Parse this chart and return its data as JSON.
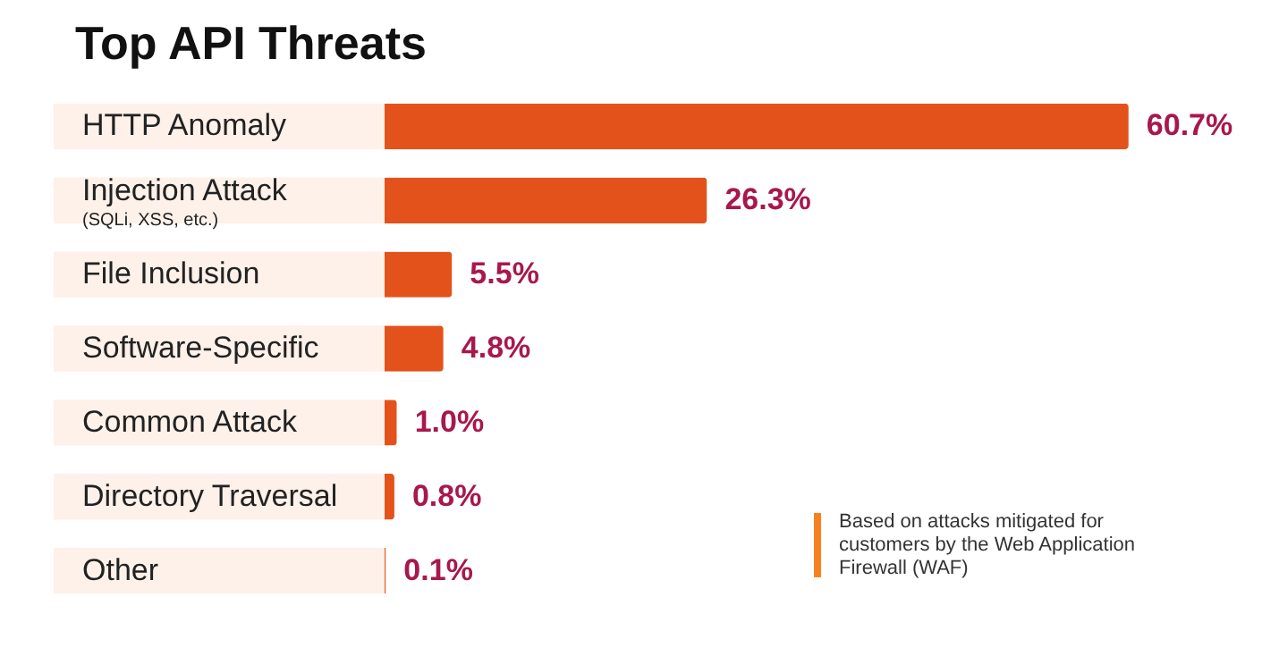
{
  "chart_data": {
    "type": "bar",
    "orientation": "horizontal",
    "title": "Top API Threats",
    "categories": [
      "HTTP Anomaly",
      "Injection Attack\n(SQLi, XSS, etc.)",
      "File Inclusion",
      "Software-Specific",
      "Common Attack",
      "Directory Traversal",
      "Other"
    ],
    "values": [
      60.7,
      26.3,
      5.5,
      4.8,
      1.0,
      0.8,
      0.1
    ],
    "value_labels": [
      "60.7%",
      "26.3%",
      "5.5%",
      "4.8%",
      "1.0%",
      "0.8%",
      "0.1%"
    ],
    "color": "#e4521b",
    "annotations": [
      "Based on attacks mitigated for customers by the Web Application Firewall (WAF)"
    ]
  }
}
